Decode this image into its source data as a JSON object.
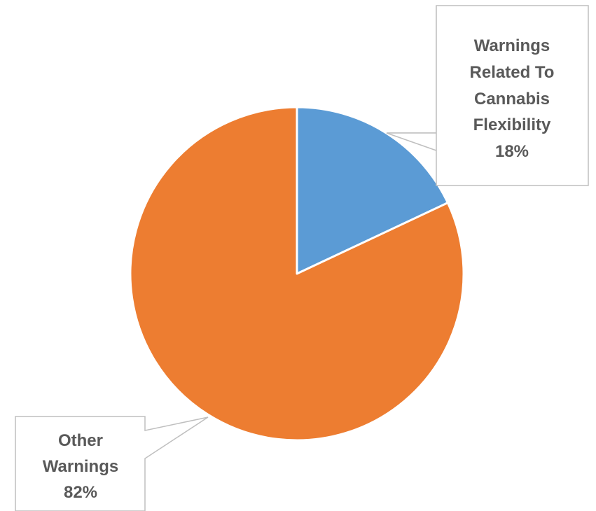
{
  "chart_data": {
    "type": "pie",
    "title": "",
    "colors": {
      "series_colors": [
        "#5b9bd5",
        "#ed7d31"
      ],
      "slice_stroke": "#ffffff",
      "callout_border": "#bfbfbf",
      "label_text": "#595959"
    },
    "slices": [
      {
        "label_lines": [
          "Warnings",
          "Related To",
          "Cannabis",
          "Flexibility"
        ],
        "value": 18,
        "value_label": "18%"
      },
      {
        "label_lines": [
          "Other",
          "Warnings"
        ],
        "value": 82,
        "value_label": "82%"
      }
    ]
  }
}
